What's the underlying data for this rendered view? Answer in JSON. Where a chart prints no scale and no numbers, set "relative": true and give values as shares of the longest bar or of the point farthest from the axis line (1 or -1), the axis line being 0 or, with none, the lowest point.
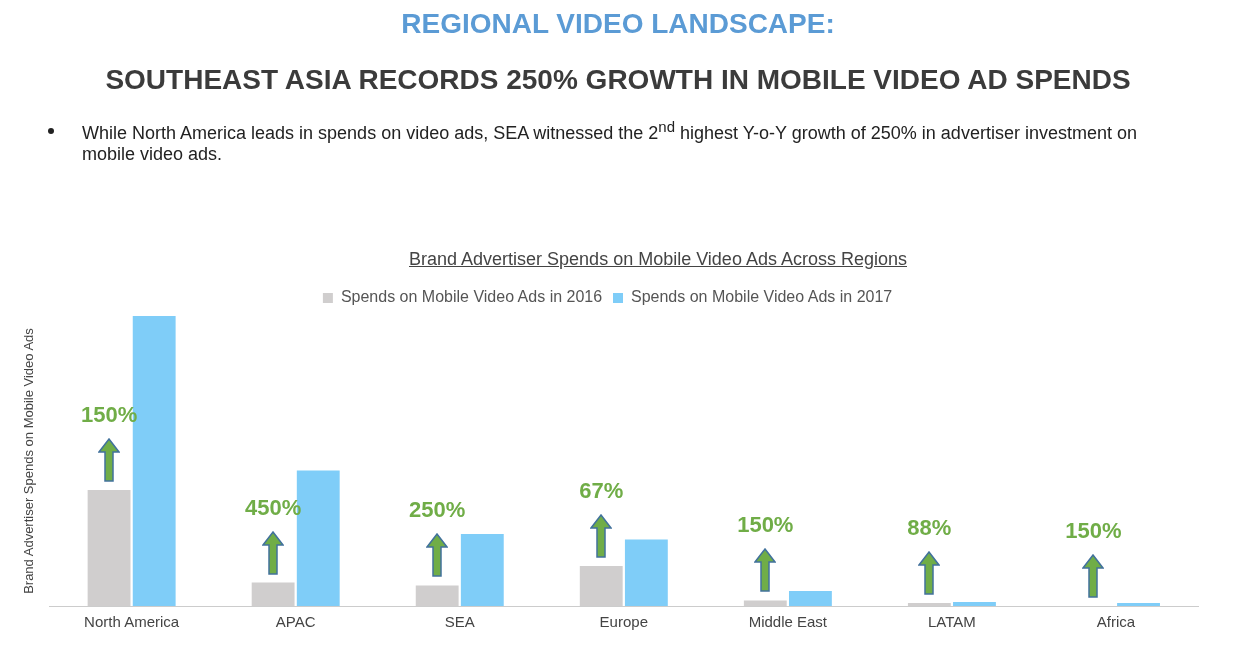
{
  "chart_data": {
    "type": "bar",
    "title": "REGIONAL VIDEO LANDSCAPE:",
    "subtitle": "SOUTHEAST ASIA RECORDS 250% GROWTH IN MOBILE VIDEO AD SPENDS",
    "ylabel": "Brand Advertiser Spends on Mobile Video Ads",
    "relative": true,
    "legend": "top",
    "grid": false,
    "categories": [
      "North America",
      "APAC",
      "SEA",
      "Europe",
      "Middle East",
      "LATAM",
      "Africa"
    ],
    "series": [
      {
        "name": "Spends on Mobile Video Ads in 2016",
        "color": "#d0cece",
        "values": [
          0.4,
          0.081,
          0.071,
          0.138,
          0.019,
          0.01,
          null
        ]
      },
      {
        "name": "Spends on Mobile Video Ads in 2017",
        "color": "#7fcdf8",
        "values": [
          1,
          0.467,
          0.248,
          0.229,
          0.052,
          0.014,
          0.01
        ]
      }
    ],
    "annotations": [
      "While North America leads in spends on video ads, SEA witnessed the 2$^{nd}$ highest Y-o-Y growth of 250% in advertiser investment on mobile video ads.",
      "Brand Advertiser Spends on Mobile Video Ads Across Regions",
      "150%",
      "450%",
      "250%",
      "67%",
      "150%",
      "88%",
      "150%"
    ]
  }
}
